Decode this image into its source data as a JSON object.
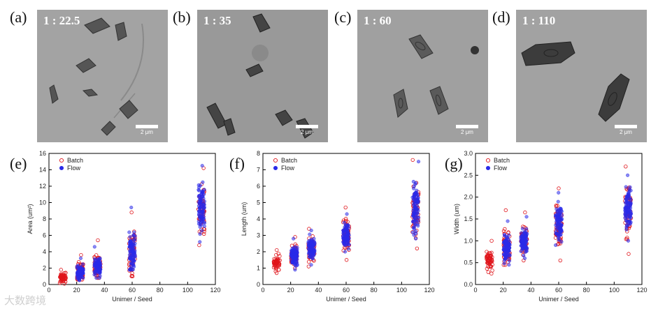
{
  "panels": {
    "a": {
      "label": "(a)",
      "ratio": "1 : 22.5",
      "scale": "2 μm"
    },
    "b": {
      "label": "(b)",
      "ratio": "1 : 35",
      "scale": "2 μm"
    },
    "c": {
      "label": "(c)",
      "ratio": "1 : 60",
      "scale": "2 μm"
    },
    "d": {
      "label": "(d)",
      "ratio": "1 : 110",
      "scale": "2 μm"
    },
    "e": {
      "label": "(e)"
    },
    "f": {
      "label": "(f)"
    },
    "g": {
      "label": "(g)"
    }
  },
  "colors": {
    "batch": "#e0151b",
    "flow": "#2a2ae8",
    "tem_bg": "#9c9c9c"
  },
  "watermark": "大数跨境",
  "chart_data": [
    {
      "type": "scatter",
      "title": "",
      "xlabel": "Unimer / Seed",
      "ylabel": "Area (um²)",
      "xlim": [
        0,
        120
      ],
      "ylim": [
        0,
        16
      ],
      "xticks": [
        0,
        20,
        40,
        60,
        80,
        100,
        120
      ],
      "yticks": [
        0,
        2,
        4,
        6,
        8,
        10,
        12,
        14,
        16
      ],
      "legend": "top-left",
      "series": [
        {
          "name": "Batch",
          "marker": "open-circle",
          "groups": [
            {
              "x": 10,
              "min": 0.1,
              "max": 1.8,
              "mean": 0.8
            },
            {
              "x": 22.5,
              "min": 0.6,
              "max": 3.6,
              "mean": 1.6
            },
            {
              "x": 35,
              "min": 0.8,
              "max": 5.4,
              "mean": 2.2
            },
            {
              "x": 60,
              "min": 1.0,
              "max": 8.8,
              "mean": 4.0
            },
            {
              "x": 110,
              "min": 4.8,
              "max": 14.2,
              "mean": 9.0
            }
          ]
        },
        {
          "name": "Flow",
          "marker": "filled-circle",
          "groups": [
            {
              "x": 22.5,
              "min": 0.5,
              "max": 3.2,
              "mean": 1.5
            },
            {
              "x": 35,
              "min": 0.8,
              "max": 4.6,
              "mean": 2.1
            },
            {
              "x": 60,
              "min": 1.8,
              "max": 9.4,
              "mean": 4.2
            },
            {
              "x": 110,
              "min": 5.2,
              "max": 14.5,
              "mean": 9.2
            }
          ]
        }
      ]
    },
    {
      "type": "scatter",
      "title": "",
      "xlabel": "Unimer / Seed",
      "ylabel": "Length (um)",
      "xlim": [
        0,
        120
      ],
      "ylim": [
        0,
        8
      ],
      "xticks": [
        0,
        20,
        40,
        60,
        80,
        100,
        120
      ],
      "yticks": [
        0,
        1,
        2,
        3,
        4,
        5,
        6,
        7,
        8
      ],
      "legend": "top-left",
      "series": [
        {
          "name": "Batch",
          "marker": "open-circle",
          "groups": [
            {
              "x": 10,
              "min": 0.7,
              "max": 2.1,
              "mean": 1.3
            },
            {
              "x": 22.5,
              "min": 1.0,
              "max": 2.9,
              "mean": 1.8
            },
            {
              "x": 35,
              "min": 1.1,
              "max": 3.4,
              "mean": 2.2
            },
            {
              "x": 60,
              "min": 1.5,
              "max": 4.7,
              "mean": 3.0
            },
            {
              "x": 110,
              "min": 2.2,
              "max": 7.6,
              "mean": 4.5
            }
          ]
        },
        {
          "name": "Flow",
          "marker": "filled-circle",
          "groups": [
            {
              "x": 22.5,
              "min": 0.9,
              "max": 2.8,
              "mean": 1.8
            },
            {
              "x": 35,
              "min": 1.2,
              "max": 3.3,
              "mean": 2.2
            },
            {
              "x": 60,
              "min": 2.0,
              "max": 4.3,
              "mean": 3.0
            },
            {
              "x": 110,
              "min": 2.8,
              "max": 7.5,
              "mean": 4.6
            }
          ]
        }
      ]
    },
    {
      "type": "scatter",
      "title": "",
      "xlabel": "Unimer / Seed",
      "ylabel": "Width (um)",
      "xlim": [
        0,
        120
      ],
      "ylim": [
        0.0,
        3.0
      ],
      "xticks": [
        0,
        20,
        40,
        60,
        80,
        100,
        120
      ],
      "yticks": [
        "0.0",
        "0.5",
        "1.0",
        "1.5",
        "2.0",
        "2.5",
        "3.0"
      ],
      "legend": "top-left",
      "series": [
        {
          "name": "Batch",
          "marker": "open-circle",
          "groups": [
            {
              "x": 10,
              "min": 0.25,
              "max": 1.0,
              "mean": 0.55
            },
            {
              "x": 22.5,
              "min": 0.45,
              "max": 1.7,
              "mean": 0.85
            },
            {
              "x": 35,
              "min": 0.55,
              "max": 1.65,
              "mean": 1.0
            },
            {
              "x": 60,
              "min": 0.55,
              "max": 2.2,
              "mean": 1.35
            },
            {
              "x": 110,
              "min": 0.7,
              "max": 2.7,
              "mean": 1.7
            }
          ]
        },
        {
          "name": "Flow",
          "marker": "filled-circle",
          "groups": [
            {
              "x": 22.5,
              "min": 0.45,
              "max": 1.45,
              "mean": 0.85
            },
            {
              "x": 35,
              "min": 0.6,
              "max": 1.55,
              "mean": 1.0
            },
            {
              "x": 60,
              "min": 0.9,
              "max": 2.1,
              "mean": 1.4
            },
            {
              "x": 110,
              "min": 1.0,
              "max": 2.5,
              "mean": 1.75
            }
          ]
        }
      ]
    }
  ]
}
